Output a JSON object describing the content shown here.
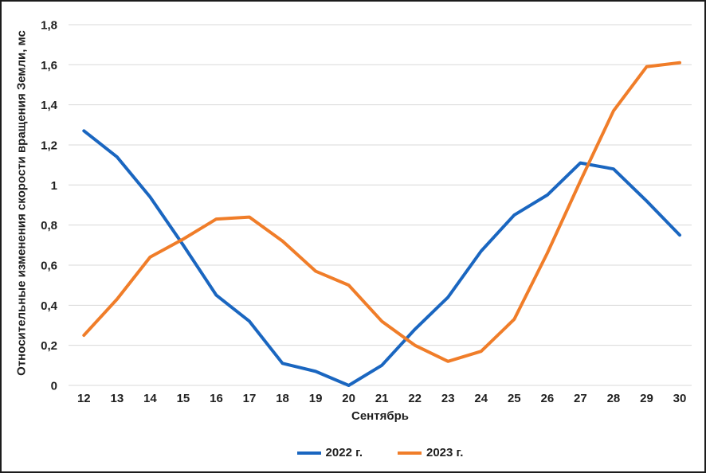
{
  "chart_data": {
    "type": "line",
    "x": [
      12,
      13,
      14,
      15,
      16,
      17,
      18,
      19,
      20,
      21,
      22,
      23,
      24,
      25,
      26,
      27,
      28,
      29,
      30
    ],
    "series": [
      {
        "name": "2022 г.",
        "color": "#1a66c0",
        "values": [
          1.27,
          1.14,
          0.94,
          0.7,
          0.45,
          0.32,
          0.11,
          0.07,
          0.0,
          0.1,
          0.28,
          0.44,
          0.67,
          0.85,
          0.95,
          1.11,
          1.08,
          0.92,
          0.75
        ]
      },
      {
        "name": "2023 г.",
        "color": "#f07d29",
        "values": [
          0.25,
          0.43,
          0.64,
          0.73,
          0.83,
          0.84,
          0.72,
          0.57,
          0.5,
          0.32,
          0.2,
          0.12,
          0.17,
          0.33,
          0.66,
          1.02,
          1.37,
          1.59,
          1.61
        ]
      }
    ],
    "title": "",
    "xlabel": "Сентябрь",
    "ylabel": "Относительные изменения скорости вращения Земли, мс",
    "ylim": [
      0,
      1.8
    ],
    "ytick_step": 0.2,
    "y_ticks": [
      "0",
      "0,2",
      "0,4",
      "0,6",
      "0,8",
      "1",
      "1,2",
      "1,4",
      "1,6",
      "1,8"
    ],
    "grid": "horizontal",
    "legend_position": "bottom",
    "gridline_color": "#d8d8d8",
    "text_color": "#1f1f1f",
    "background_color": "#ffffff"
  }
}
